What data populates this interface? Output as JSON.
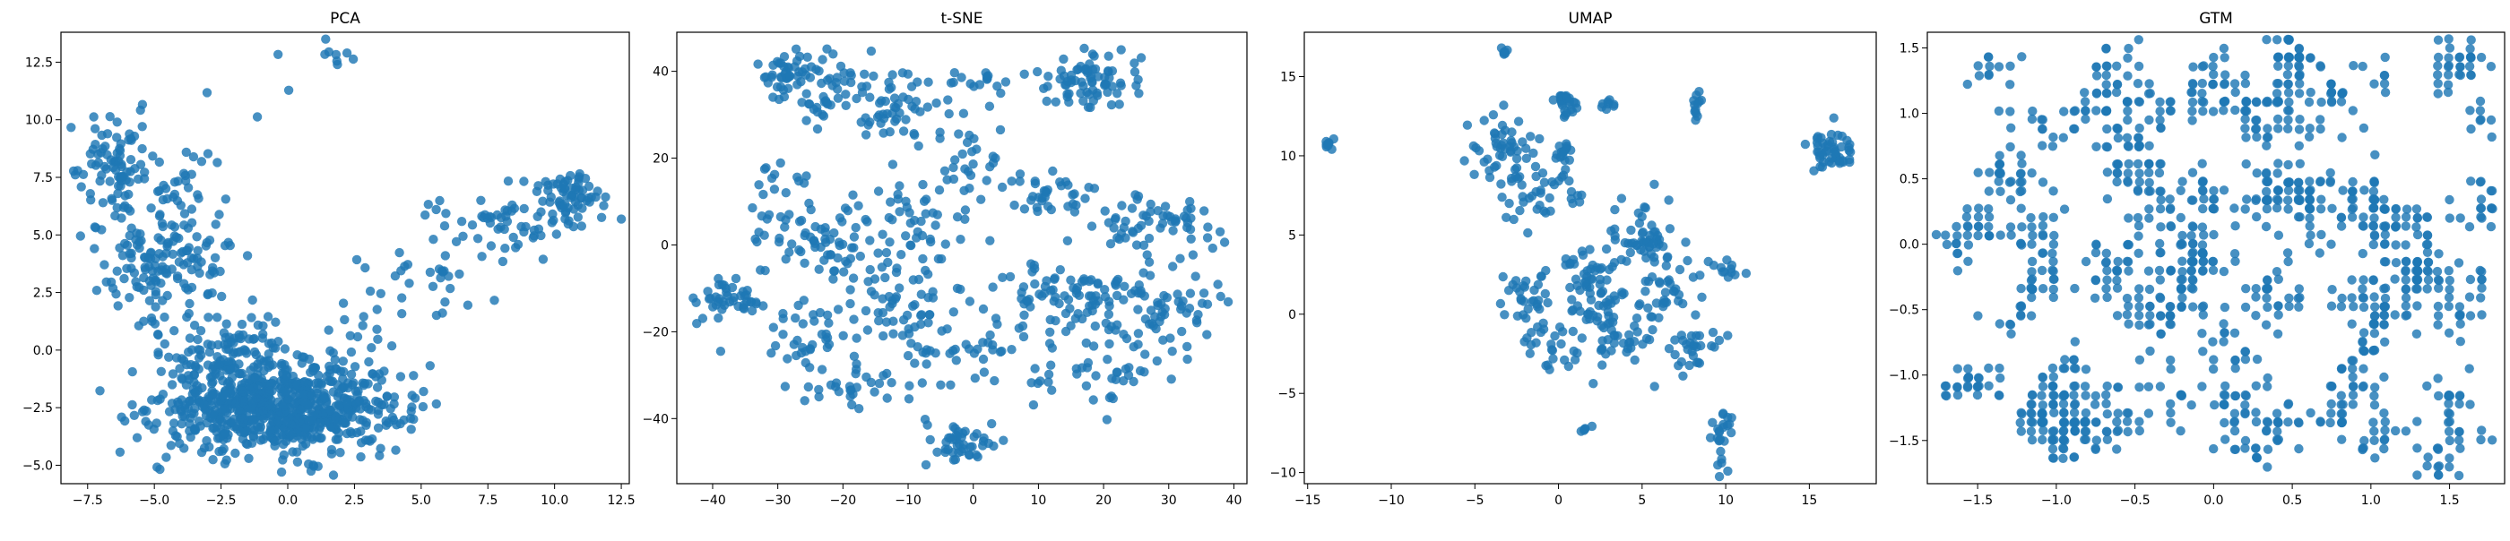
{
  "chart_data": [
    {
      "type": "scatter",
      "title": "PCA",
      "xlim": [
        -8.5,
        12.8
      ],
      "ylim": [
        -5.8,
        13.8
      ],
      "xticks": [
        -7.5,
        -5.0,
        -2.5,
        0.0,
        2.5,
        5.0,
        7.5,
        10.0,
        12.5
      ],
      "xtick_labels": [
        "−7.5",
        "−5.0",
        "−2.5",
        "0.0",
        "2.5",
        "5.0",
        "7.5",
        "10.0",
        "12.5"
      ],
      "yticks": [
        -5.0,
        -2.5,
        0.0,
        2.5,
        5.0,
        7.5,
        10.0,
        12.5
      ],
      "ytick_labels": [
        "−5.0",
        "−2.5",
        "0.0",
        "2.5",
        "5.0",
        "7.5",
        "10.0",
        "12.5"
      ],
      "color": "#1f77b4",
      "clusters": [
        {
          "cx": -0.3,
          "cy": -2.6,
          "sx": 2.3,
          "sy": 0.9,
          "n": 700
        },
        {
          "cx": -2.0,
          "cy": -0.5,
          "sx": 1.2,
          "sy": 1.0,
          "n": 150
        },
        {
          "cx": -4.5,
          "cy": 3.8,
          "sx": 1.2,
          "sy": 1.3,
          "n": 150
        },
        {
          "cx": -6.3,
          "cy": 7.8,
          "sx": 0.8,
          "sy": 1.1,
          "n": 90
        },
        {
          "cx": -3.8,
          "cy": 7.2,
          "sx": 0.7,
          "sy": 1.0,
          "n": 20
        },
        {
          "cx": 10.8,
          "cy": 6.6,
          "sx": 0.7,
          "sy": 0.6,
          "n": 60
        },
        {
          "cx": 8.0,
          "cy": 5.8,
          "sx": 1.5,
          "sy": 0.9,
          "n": 60
        },
        {
          "cx": 5.0,
          "cy": 3.5,
          "sx": 1.2,
          "sy": 1.3,
          "n": 30
        },
        {
          "cx": 2.5,
          "cy": 0.5,
          "sx": 1.0,
          "sy": 1.2,
          "n": 30
        },
        {
          "cx": 2.0,
          "cy": 12.8,
          "sx": 0.4,
          "sy": 0.3,
          "n": 8
        },
        {
          "cx": -1.5,
          "cy": 11.0,
          "sx": 1.5,
          "sy": 1.0,
          "n": 4
        }
      ]
    },
    {
      "type": "scatter",
      "title": "t-SNE",
      "xlim": [
        -45.5,
        42.0
      ],
      "ylim": [
        -55.0,
        49.0
      ],
      "xticks": [
        -40,
        -30,
        -20,
        -10,
        0,
        10,
        20,
        30,
        40
      ],
      "xtick_labels": [
        "−40",
        "−30",
        "−20",
        "−10",
        "0",
        "10",
        "20",
        "30",
        "40"
      ],
      "yticks": [
        -40,
        -20,
        0,
        20,
        40
      ],
      "ytick_labels": [
        "−40",
        "−20",
        "0",
        "20",
        "40"
      ],
      "color": "#1f77b4",
      "clusters": [
        {
          "cx": -29,
          "cy": 40,
          "sx": 1.8,
          "sy": 2.0,
          "n": 35
        },
        {
          "cx": -22,
          "cy": 36,
          "sx": 3.0,
          "sy": 4.0,
          "n": 50
        },
        {
          "cx": -12,
          "cy": 32,
          "sx": 3.5,
          "sy": 4.0,
          "n": 55
        },
        {
          "cx": 18,
          "cy": 38,
          "sx": 4.0,
          "sy": 3.5,
          "n": 75
        },
        {
          "cx": 0,
          "cy": 38,
          "sx": 3.0,
          "sy": 2.0,
          "n": 15
        },
        {
          "cx": -38,
          "cy": -12,
          "sx": 3.0,
          "sy": 2.5,
          "n": 45
        },
        {
          "cx": -30,
          "cy": 10,
          "sx": 2.5,
          "sy": 8.0,
          "n": 30
        },
        {
          "cx": -22,
          "cy": 0,
          "sx": 4.0,
          "sy": 5.0,
          "n": 50
        },
        {
          "cx": -10,
          "cy": 3,
          "sx": 4.0,
          "sy": 6.0,
          "n": 55
        },
        {
          "cx": 0,
          "cy": 18,
          "sx": 3.0,
          "sy": 5.0,
          "n": 30
        },
        {
          "cx": 12,
          "cy": 12,
          "sx": 4.0,
          "sy": 3.0,
          "n": 35
        },
        {
          "cx": 28,
          "cy": 5,
          "sx": 5.0,
          "sy": 4.0,
          "n": 60
        },
        {
          "cx": 15,
          "cy": -12,
          "sx": 6.0,
          "sy": 4.0,
          "n": 90
        },
        {
          "cx": 30,
          "cy": -14,
          "sx": 5.0,
          "sy": 6.0,
          "n": 60
        },
        {
          "cx": -12,
          "cy": -16,
          "sx": 5.0,
          "sy": 5.0,
          "n": 55
        },
        {
          "cx": -25,
          "cy": -22,
          "sx": 4.0,
          "sy": 4.0,
          "n": 35
        },
        {
          "cx": 0,
          "cy": -25,
          "sx": 5.0,
          "sy": 4.0,
          "n": 40
        },
        {
          "cx": -2,
          "cy": -46,
          "sx": 2.5,
          "sy": 2.5,
          "n": 45
        },
        {
          "cx": 20,
          "cy": -30,
          "sx": 6.0,
          "sy": 4.0,
          "n": 35
        },
        {
          "cx": -18,
          "cy": -33,
          "sx": 5.0,
          "sy": 3.0,
          "n": 30
        }
      ]
    },
    {
      "type": "scatter",
      "title": "UMAP",
      "xlim": [
        -15.2,
        19.0
      ],
      "ylim": [
        -10.7,
        17.8
      ],
      "xticks": [
        -15,
        -10,
        -5,
        0,
        5,
        10,
        15
      ],
      "xtick_labels": [
        "−15",
        "−10",
        "−5",
        "0",
        "5",
        "10",
        "15"
      ],
      "yticks": [
        -10,
        -5,
        0,
        5,
        10,
        15
      ],
      "ytick_labels": [
        "−10",
        "−5",
        "0",
        "5",
        "10",
        "15"
      ],
      "color": "#1f77b4",
      "clusters": [
        {
          "cx": -13.8,
          "cy": 10.6,
          "sx": 0.15,
          "sy": 0.2,
          "n": 8
        },
        {
          "cx": -3.2,
          "cy": 16.5,
          "sx": 0.15,
          "sy": 0.2,
          "n": 6
        },
        {
          "cx": 0.5,
          "cy": 13.5,
          "sx": 0.3,
          "sy": 0.5,
          "n": 25
        },
        {
          "cx": 0.3,
          "cy": 10.2,
          "sx": 0.3,
          "sy": 0.4,
          "n": 15
        },
        {
          "cx": 3.0,
          "cy": 13.2,
          "sx": 0.3,
          "sy": 0.2,
          "n": 8
        },
        {
          "cx": 8.2,
          "cy": 13.3,
          "sx": 0.2,
          "sy": 0.4,
          "n": 12
        },
        {
          "cx": 16.5,
          "cy": 10.3,
          "sx": 0.8,
          "sy": 0.7,
          "n": 50
        },
        {
          "cx": -3.5,
          "cy": 10.5,
          "sx": 1.0,
          "sy": 1.2,
          "n": 50
        },
        {
          "cx": -2.0,
          "cy": 7.5,
          "sx": 1.2,
          "sy": 1.0,
          "n": 25
        },
        {
          "cx": 0.0,
          "cy": 7.8,
          "sx": 0.6,
          "sy": 0.6,
          "n": 15
        },
        {
          "cx": -1.5,
          "cy": 1.0,
          "sx": 1.0,
          "sy": 0.8,
          "n": 30
        },
        {
          "cx": -0.5,
          "cy": -2.0,
          "sx": 0.8,
          "sy": 1.0,
          "n": 25
        },
        {
          "cx": 2.0,
          "cy": 1.5,
          "sx": 1.0,
          "sy": 1.5,
          "n": 60
        },
        {
          "cx": 3.5,
          "cy": -1.5,
          "sx": 1.0,
          "sy": 1.5,
          "n": 45
        },
        {
          "cx": 5.0,
          "cy": 5.0,
          "sx": 1.2,
          "sy": 1.2,
          "n": 40
        },
        {
          "cx": 6.0,
          "cy": 1.0,
          "sx": 1.2,
          "sy": 1.5,
          "n": 40
        },
        {
          "cx": 8.0,
          "cy": -2.0,
          "sx": 0.8,
          "sy": 1.2,
          "n": 30
        },
        {
          "cx": 10.3,
          "cy": 2.8,
          "sx": 0.6,
          "sy": 0.3,
          "n": 12
        },
        {
          "cx": 9.8,
          "cy": -7.5,
          "sx": 0.4,
          "sy": 1.2,
          "n": 25
        },
        {
          "cx": 1.5,
          "cy": -7.2,
          "sx": 0.2,
          "sy": 0.2,
          "n": 5
        },
        {
          "cx": 5.2,
          "cy": 4.5,
          "sx": 0.8,
          "sy": 0.2,
          "n": 12
        }
      ]
    },
    {
      "type": "scatter",
      "title": "GTM",
      "xlim": [
        -1.82,
        1.85
      ],
      "ylim": [
        -1.83,
        1.62
      ],
      "xticks": [
        -1.5,
        -1.0,
        -0.5,
        0.0,
        0.5,
        1.0,
        1.5
      ],
      "xtick_labels": [
        "−1.5",
        "−1.0",
        "−0.5",
        "0.0",
        "0.5",
        "1.0",
        "1.5"
      ],
      "yticks": [
        -1.5,
        -1.0,
        -0.5,
        0.0,
        0.5,
        1.0,
        1.5
      ],
      "ytick_labels": [
        "−1.5",
        "−1.0",
        "−0.5",
        "0.0",
        "0.5",
        "1.0",
        "1.5"
      ],
      "color": "#1f77b4",
      "grid_step": 0.068,
      "n_points": 1250
    }
  ]
}
